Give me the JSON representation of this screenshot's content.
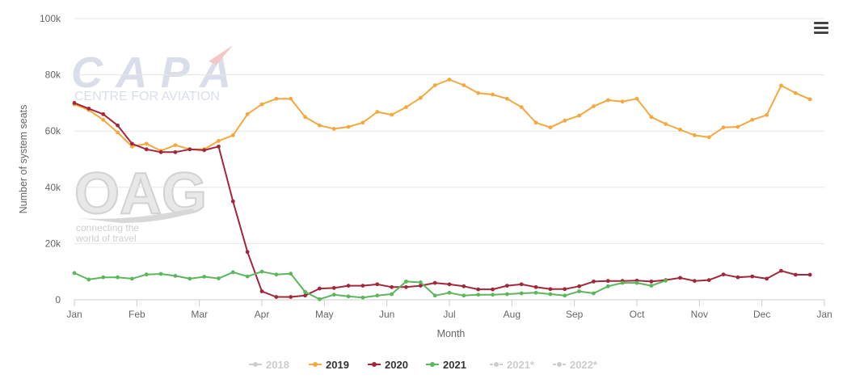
{
  "chart_data": {
    "type": "line",
    "title": "",
    "xlabel": "Month",
    "ylabel": "Number of system seats",
    "x_ticks": [
      "Jan",
      "Feb",
      "Mar",
      "Apr",
      "May",
      "Jun",
      "Jul",
      "Aug",
      "Sep",
      "Oct",
      "Nov",
      "Dec",
      "Jan"
    ],
    "y_ticks": [
      "0",
      "20k",
      "40k",
      "60k",
      "80k",
      "100k"
    ],
    "ylim": [
      0,
      100000
    ],
    "xlim": [
      1,
      53
    ],
    "x_unit": "week of year",
    "grid": true,
    "legend_position": "bottom",
    "series": [
      {
        "name": "2018",
        "color": "#cccccc",
        "visible": false,
        "values": []
      },
      {
        "name": "2019",
        "color": "#f4a83e",
        "visible": true,
        "x": [
          1,
          2,
          3,
          4,
          5,
          6,
          7,
          8,
          9,
          10,
          11,
          12,
          13,
          14,
          15,
          16,
          17,
          18,
          19,
          20,
          21,
          22,
          23,
          24,
          25,
          26,
          27,
          28,
          29,
          30,
          31,
          32,
          33,
          34,
          35,
          36,
          37,
          38,
          39,
          40,
          41,
          42,
          43,
          44,
          45,
          46,
          47,
          48,
          49,
          50,
          51,
          52,
          53
        ],
        "values": [
          69500,
          67500,
          64000,
          59500,
          54500,
          55500,
          53000,
          55000,
          53500,
          53500,
          56500,
          58500,
          66000,
          69500,
          71500,
          71500,
          65000,
          62000,
          60800,
          61500,
          63000,
          66800,
          65800,
          68500,
          71800,
          76300,
          78300,
          76300,
          73500,
          73000,
          71500,
          68500,
          63000,
          61300,
          63700,
          65500,
          68800,
          71000,
          70500,
          71500,
          65000,
          62500,
          60500,
          58500,
          57800,
          61300,
          61500,
          64000,
          65700,
          76200,
          73500,
          71300,
          null
        ]
      },
      {
        "name": "2020",
        "color": "#a0283a",
        "visible": true,
        "x": [
          1,
          2,
          3,
          4,
          5,
          6,
          7,
          8,
          9,
          10,
          11,
          12,
          13,
          14,
          15,
          16,
          17,
          18,
          19,
          20,
          21,
          22,
          23,
          24,
          25,
          26,
          27,
          28,
          29,
          30,
          31,
          32,
          33,
          34,
          35,
          36,
          37,
          38,
          39,
          40,
          41,
          42,
          43,
          44,
          45,
          46,
          47,
          48,
          49,
          50,
          51,
          52,
          53
        ],
        "values": [
          70000,
          68000,
          66000,
          62000,
          55500,
          53500,
          52500,
          52500,
          53500,
          53200,
          54500,
          35000,
          17000,
          3000,
          1000,
          1000,
          1500,
          4000,
          4200,
          5000,
          5000,
          5500,
          4500,
          4500,
          5000,
          6000,
          5500,
          4800,
          3700,
          3700,
          5000,
          5500,
          4500,
          3800,
          3800,
          4800,
          6500,
          6700,
          6700,
          6800,
          6500,
          7000,
          7800,
          6700,
          7000,
          9000,
          8000,
          8300,
          7500,
          10300,
          8900,
          8900,
          null
        ]
      },
      {
        "name": "2021",
        "color": "#5bb75b",
        "visible": true,
        "x": [
          1,
          2,
          3,
          4,
          5,
          6,
          7,
          8,
          9,
          10,
          11,
          12,
          13,
          14,
          15,
          16,
          17,
          18,
          19,
          20,
          21,
          22,
          23,
          24,
          25,
          26,
          27,
          28,
          29,
          30,
          31,
          32,
          33,
          34,
          35,
          36,
          37,
          38,
          39,
          40,
          41,
          42
        ],
        "values": [
          9500,
          7200,
          8000,
          8000,
          7500,
          9000,
          9200,
          8500,
          7500,
          8200,
          7600,
          9800,
          8300,
          10000,
          9000,
          9300,
          2800,
          200,
          1800,
          1200,
          800,
          1500,
          2000,
          6500,
          6200,
          1500,
          2500,
          1500,
          1800,
          1800,
          2000,
          2300,
          2500,
          2000,
          1500,
          3000,
          2300,
          4800,
          6000,
          6000,
          5000,
          6800
        ]
      },
      {
        "name": "2021*",
        "color": "#cccccc",
        "visible": false,
        "values": []
      },
      {
        "name": "2022*",
        "color": "#cccccc",
        "visible": false,
        "values": []
      }
    ],
    "watermarks": [
      "CAPA",
      "CENTRE FOR AVIATION",
      "OAG",
      "connecting the",
      "world of travel"
    ]
  }
}
